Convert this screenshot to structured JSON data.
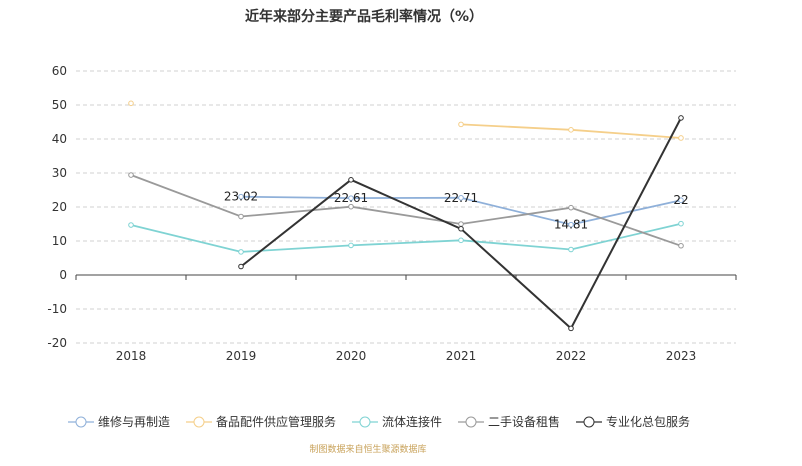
{
  "chart_data": {
    "type": "line",
    "title": "近年来部分主要产品毛利率情况（%）",
    "xlabel": "",
    "ylabel": "",
    "x": [
      "2018",
      "2019",
      "2020",
      "2021",
      "2022",
      "2023"
    ],
    "ylim": [
      -20,
      60
    ],
    "yticks": [
      60,
      50,
      40,
      30,
      20,
      10,
      0,
      -10,
      -20
    ],
    "grid": true,
    "legend_position": "bottom",
    "series": [
      {
        "name": "维修与再制造",
        "color": "#8fb0d9",
        "values": [
          null,
          23.02,
          22.61,
          22.71,
          14.81,
          22
        ],
        "labels": [
          "",
          "23.02",
          "22.61",
          "22.71",
          "14.81",
          "22"
        ]
      },
      {
        "name": "备品配件供应管理服务",
        "color": "#f5cf8a",
        "values": [
          50.5,
          null,
          null,
          44.3,
          42.7,
          40.3
        ],
        "labels": [
          "",
          "",
          "",
          "",
          "",
          ""
        ]
      },
      {
        "name": "流体连接件",
        "color": "#7fd3d3",
        "values": [
          14.7,
          6.8,
          8.7,
          10.2,
          7.5,
          15.1
        ],
        "labels": [
          "",
          "",
          "",
          "",
          "",
          ""
        ]
      },
      {
        "name": "二手设备租售",
        "color": "#9a9a9a",
        "values": [
          29.4,
          17.2,
          20.1,
          15.0,
          19.8,
          8.6
        ],
        "labels": [
          "",
          "",
          "",
          "",
          "",
          ""
        ]
      },
      {
        "name": "专业化总包服务",
        "color": "#333333",
        "values": [
          null,
          2.5,
          28.0,
          13.6,
          -15.7,
          46.2
        ],
        "labels": [
          "",
          "",
          "",
          "",
          "",
          ""
        ]
      }
    ]
  },
  "footer": "制图数据来自恒生聚源数据库"
}
